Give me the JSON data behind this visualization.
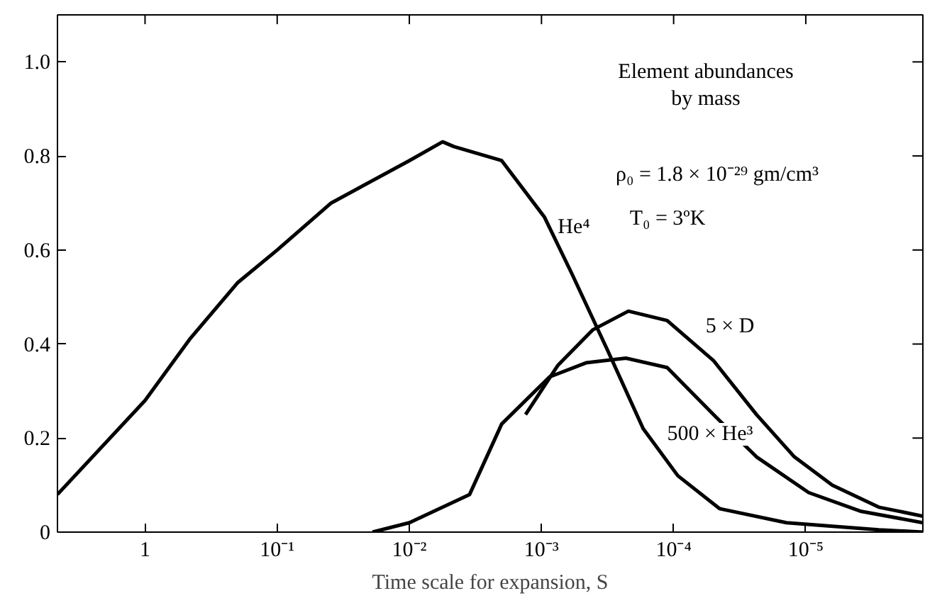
{
  "chart_data": {
    "type": "line",
    "xlabel": "Time scale for expansion, S",
    "log": "x",
    "xlim": [
      4.6,
      1.3e-06
    ],
    "ylim": [
      0,
      1.1
    ],
    "xticks": [
      1,
      {
        "value": 0.1,
        "label": "10⁻¹"
      },
      {
        "value": 0.01,
        "label": "10⁻²"
      },
      {
        "value": 0.001,
        "label": "10⁻³"
      },
      {
        "value": 0.0001,
        "label": "10⁻⁴"
      },
      {
        "value": 1e-05,
        "label": "10⁻⁵"
      }
    ],
    "yticks": [
      0,
      0.2,
      0.4,
      0.6,
      0.8,
      {
        "value": 1,
        "label": "1.0"
      }
    ],
    "grid": false,
    "line_style": "solid",
    "marker": "none",
    "series": [
      {
        "color": "#000000",
        "x": [
          4.6,
          1,
          0.46,
          0.2,
          0.1,
          0.039,
          0.01,
          0.0056,
          0.0046,
          0.002,
          0.00095,
          0.00059,
          0.00032,
          0.00017,
          9.3e-05,
          4.5e-05,
          1.4e-05,
          2.8e-06,
          1.3e-06
        ],
        "values": [
          0.08,
          0.28,
          0.41,
          0.53,
          0.6,
          0.7,
          0.79,
          0.83,
          0.82,
          0.79,
          0.67,
          0.55,
          0.39,
          0.22,
          0.12,
          0.05,
          0.02,
          0.005,
          0
        ]
      },
      {
        "color": "#000000",
        "x": [
          0.00132,
          0.00075,
          0.00041,
          0.00022,
          0.000112,
          5e-05,
          2.36e-05,
          1.22e-05,
          6.3e-06,
          2.8e-06,
          1.3e-06
        ],
        "values": [
          0.25,
          0.355,
          0.43,
          0.47,
          0.45,
          0.365,
          0.25,
          0.16,
          0.1,
          0.053,
          0.034
        ]
      },
      {
        "color": "#000000",
        "x": [
          0.019,
          0.01,
          0.0035,
          0.002,
          0.00087,
          0.00046,
          0.00023,
          0.000112,
          5e-05,
          2.36e-05,
          9.5e-06,
          3.8e-06,
          1.3e-06
        ],
        "values": [
          0,
          0.02,
          0.08,
          0.23,
          0.33,
          0.36,
          0.37,
          0.35,
          0.25,
          0.16,
          0.084,
          0.044,
          0.02
        ]
      }
    ],
    "annotations": [
      "Element abundances\nby mass",
      "ρ₀ = 1.8 × 10⁻²⁹ gm/cm³",
      "T₀ = 3ºK",
      "He⁴",
      "5 × D",
      "500 × He³"
    ]
  }
}
